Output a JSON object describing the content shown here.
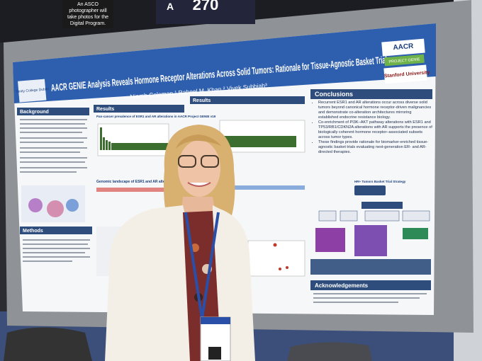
{
  "sign": {
    "text": "An ASCO photographer will take photos for the Digital Program."
  },
  "board": {
    "letter": "A",
    "number": "270"
  },
  "poster": {
    "title": "AACR GENIE Analysis Reveals Hormone Receptor Alterations Across Solid Tumors: Rationale for Tissue-Agnostic Basket Trials",
    "authors": "Niamh Coleman,¹ Raheel M. Khan,² Vivek Subbiah³",
    "logos": {
      "aacr": "AACR",
      "genie": "PROJECT GENIE",
      "stanford": "Stanford University",
      "trinity": "Trinity College Dublin"
    },
    "sections": {
      "background": "Background",
      "results_left": "Results",
      "results_right": "Results",
      "conclusions": "Conclusions",
      "methods": "Methods",
      "acknowledgements": "Acknowledgements"
    },
    "figure_titles": {
      "prevalence": "Pan-cancer prevalence of ESR1 and AR alterations in AACR Project GENIE v19",
      "landscape": "Genomic landscape of ESR1 and AR alterations",
      "strategy": "HR+ Tumors Basket Trial Strategy"
    },
    "conclusions": [
      "Recurrent ESR1 and AR alterations occur across diverse solid tumors beyond canonical hormone receptor-driven malignancies and demonstrate co-alteration architectures mirroring established endocrine resistance biology.",
      "Co-enrichment of PI3K–AKT pathway alterations with ESR1 and TP53/RB1/CDKN2A alterations with AR supports the presence of biologically coherent hormone receptor–associated subsets across tumor types.",
      "These findings provide rationale for biomarker-enriched tissue-agnostic basket trials evaluating next-generation ER- and AR-directed therapies."
    ]
  }
}
